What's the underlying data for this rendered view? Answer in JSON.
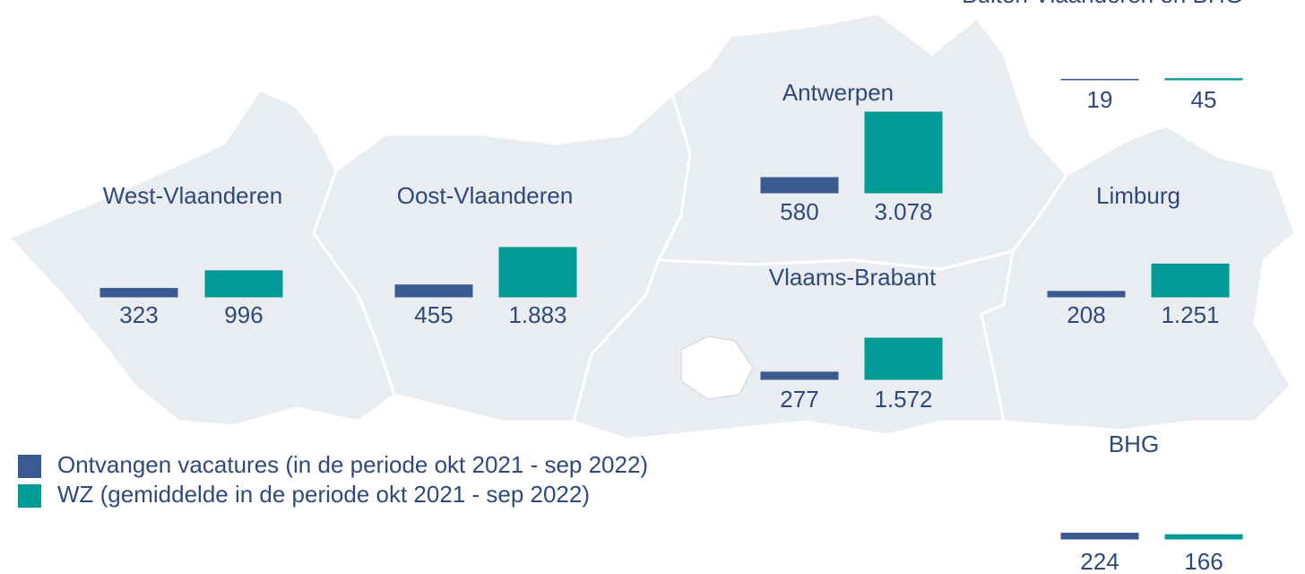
{
  "title": "Buiten Vlaanderen en BHG",
  "legend": [
    {
      "name": "Ontvangen vacatures (in de periode okt 2021 - sep 2022)",
      "color": "#3b5b90"
    },
    {
      "name": "WZ (gemiddelde in de periode okt 2021 - sep 2022)",
      "color": "#009b94"
    }
  ],
  "regions": [
    {
      "name": "West-Vlaanderen",
      "values": [
        323,
        996
      ]
    },
    {
      "name": "Oost-Vlaanderen",
      "values": [
        455,
        1883
      ],
      "value_labels": [
        "455",
        "1.883"
      ]
    },
    {
      "name": "Antwerpen",
      "values": [
        580,
        3078
      ],
      "value_labels": [
        "580",
        "3.078"
      ]
    },
    {
      "name": "Vlaams-Brabant",
      "values": [
        277,
        1572
      ],
      "value_labels": [
        "277",
        "1.572"
      ]
    },
    {
      "name": "Limburg",
      "values": [
        208,
        1251
      ],
      "value_labels": [
        "208",
        "1.251"
      ]
    },
    {
      "name": "BHG",
      "values": [
        224,
        166
      ]
    }
  ],
  "outside": {
    "values": [
      19,
      45
    ]
  }
}
